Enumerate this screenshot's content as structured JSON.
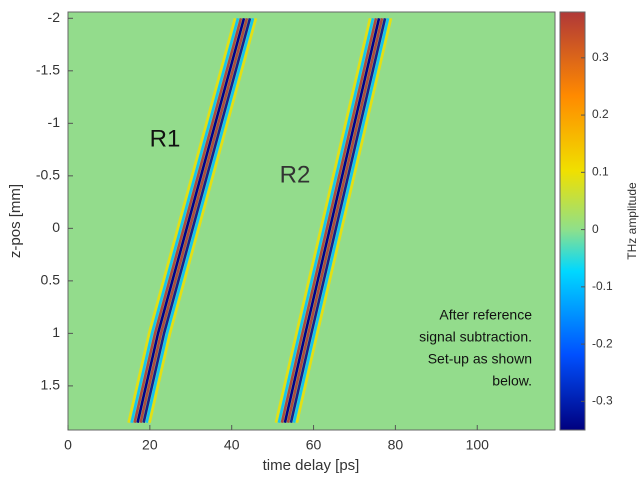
{
  "chart_data": {
    "type": "heatmap",
    "xlabel": "time delay [ps]",
    "ylabel": "z-pos [mm]",
    "colorbar_label": "THz amplitude",
    "xlim": [
      0,
      119
    ],
    "xticks": [
      0,
      20,
      40,
      60,
      80,
      100
    ],
    "ylim": [
      1.92,
      -2.06
    ],
    "yticks": [
      -2,
      -1.5,
      -1,
      -0.5,
      0,
      0.5,
      1,
      1.5
    ],
    "clim": [
      -0.35,
      0.38
    ],
    "cticks": [
      -0.3,
      -0.2,
      -0.1,
      0,
      0.1,
      0.2,
      0.3
    ],
    "series": [
      {
        "name": "R1",
        "x": [
          17,
          22,
          29,
          36,
          43
        ],
        "values": [
          1.85,
          1,
          0,
          -1,
          -2
        ]
      },
      {
        "name": "R2",
        "x": [
          53,
          58,
          64,
          70,
          76
        ],
        "values": [
          1.85,
          1,
          0,
          -1,
          -2
        ]
      }
    ],
    "annotation": [
      "After reference",
      "signal subtraction.",
      "Set-up as shown",
      "below."
    ]
  }
}
